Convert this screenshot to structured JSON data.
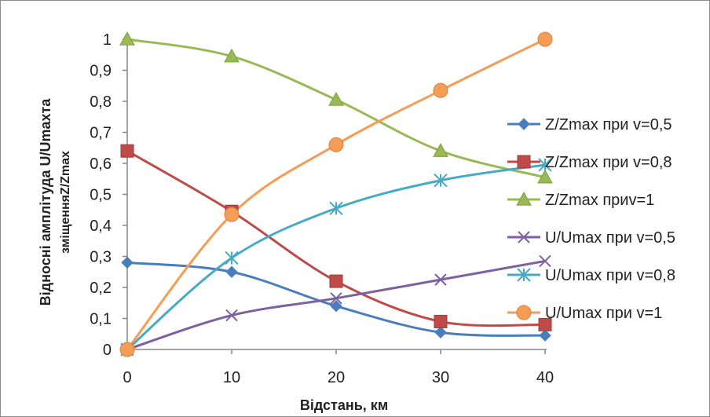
{
  "chart_data": {
    "type": "line",
    "xlabel": "Відстань, км",
    "ylabel_line1": "Відносні амплітуда U/Umaxта",
    "ylabel_line2": "зміщенняZ/Zmax",
    "xlim": [
      0,
      40
    ],
    "ylim": [
      0,
      1
    ],
    "x_ticks": [
      "0",
      "10",
      "20",
      "30",
      "40"
    ],
    "y_ticks": [
      "0",
      "0,1",
      "0,2",
      "0,3",
      "0,4",
      "0,5",
      "0,6",
      "0,7",
      "0,8",
      "0,9",
      "1"
    ],
    "grid": false,
    "legend_position": "right",
    "x": [
      0,
      10,
      20,
      30,
      40
    ],
    "series": [
      {
        "name": "Z/Zmax при v=0,5",
        "values": [
          0.28,
          0.25,
          0.14,
          0.055,
          0.045
        ],
        "color": "#4a7ebb",
        "marker": "diamond"
      },
      {
        "name": "Z/Zmax при v=0,8",
        "values": [
          0.64,
          0.445,
          0.22,
          0.09,
          0.08
        ],
        "color": "#be4b48",
        "marker": "square"
      },
      {
        "name": "Z/Zmax приv=1",
        "values": [
          1.0,
          0.945,
          0.805,
          0.64,
          0.555
        ],
        "color": "#98b954",
        "marker": "triangle"
      },
      {
        "name": "U/Umax при v=0,5",
        "values": [
          0.0,
          0.11,
          0.165,
          0.225,
          0.285
        ],
        "color": "#7d60a0",
        "marker": "x"
      },
      {
        "name": "U/Umax при v=0,8",
        "values": [
          0.0,
          0.295,
          0.455,
          0.545,
          0.595
        ],
        "color": "#46aac5",
        "marker": "star"
      },
      {
        "name": "U/Umax при v=1",
        "values": [
          0.0,
          0.435,
          0.66,
          0.835,
          1.0
        ],
        "color": "#f59d56",
        "marker": "circle"
      }
    ]
  }
}
